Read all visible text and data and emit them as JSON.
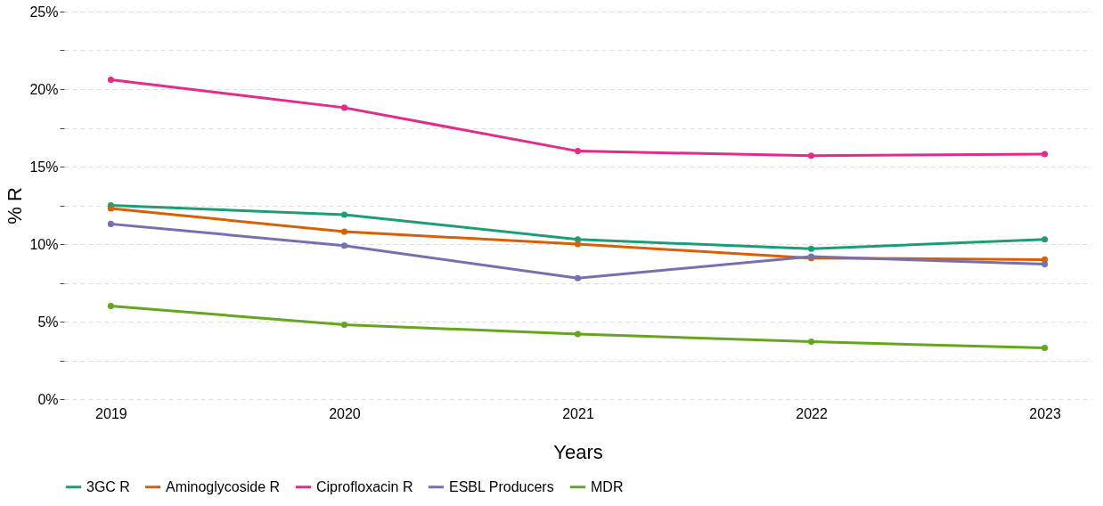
{
  "chart_data": {
    "type": "line",
    "xlabel": "Years",
    "ylabel": "% R",
    "categories": [
      "2019",
      "2020",
      "2021",
      "2022",
      "2023"
    ],
    "series": [
      {
        "name": "3GC R",
        "color": "#1b9e77",
        "values": [
          12.5,
          11.9,
          10.3,
          9.7,
          10.3
        ]
      },
      {
        "name": "Aminoglycoside R",
        "color": "#d95f02",
        "values": [
          12.3,
          10.8,
          10.0,
          9.1,
          9.0
        ]
      },
      {
        "name": "Ciprofloxacin R",
        "color": "#e7298a",
        "values": [
          20.6,
          18.8,
          16.0,
          15.7,
          15.8
        ]
      },
      {
        "name": "ESBL Producers",
        "color": "#7570b3",
        "values": [
          11.3,
          9.9,
          7.8,
          9.2,
          8.7
        ]
      },
      {
        "name": "MDR",
        "color": "#66a61e",
        "values": [
          6.0,
          4.8,
          4.2,
          3.7,
          3.3
        ]
      }
    ],
    "ylim": [
      0,
      25
    ],
    "yticks": [
      {
        "value": 0,
        "label": "0%"
      },
      {
        "value": 2.5,
        "label": null
      },
      {
        "value": 5,
        "label": "5%"
      },
      {
        "value": 7.5,
        "label": null
      },
      {
        "value": 10,
        "label": "10%"
      },
      {
        "value": 12.5,
        "label": null
      },
      {
        "value": 15,
        "label": "15%"
      },
      {
        "value": 17.5,
        "label": null
      },
      {
        "value": 20,
        "label": "20%"
      },
      {
        "value": 22.5,
        "label": null
      },
      {
        "value": 25,
        "label": "25%"
      }
    ],
    "grid": "y",
    "legend": "bottom",
    "marker": "circle",
    "line_style": "solid"
  }
}
